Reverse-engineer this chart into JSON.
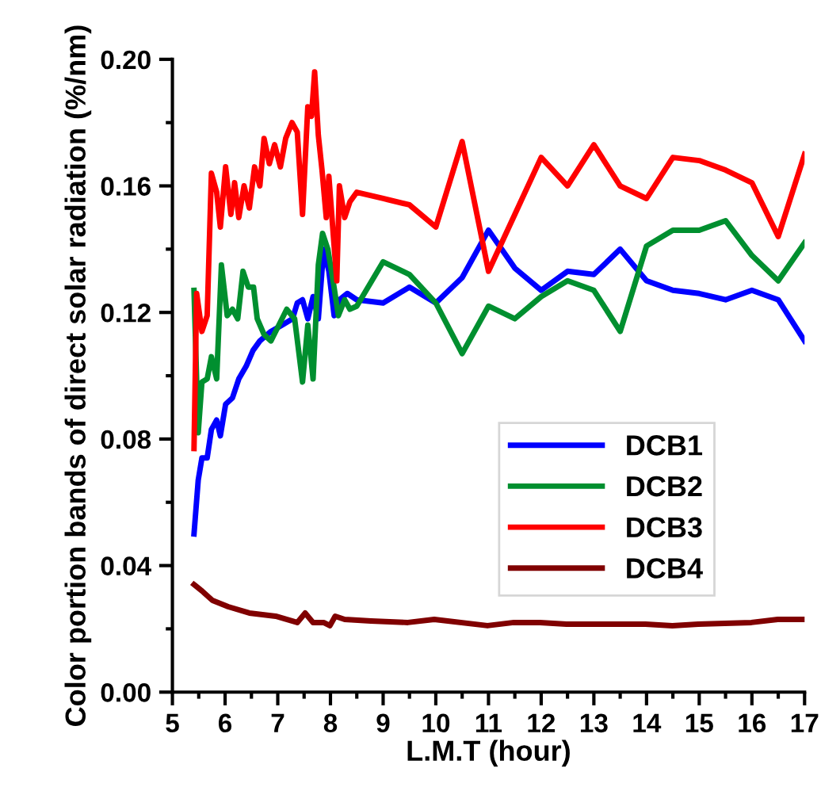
{
  "chart_data": {
    "type": "line",
    "xlabel": "L.M.T (hour)",
    "ylabel": "Color portion bands of direct solar radiation (%/nm)",
    "xlim": [
      5,
      17
    ],
    "ylim": [
      0,
      0.2
    ],
    "xticks": [
      5,
      6,
      7,
      8,
      9,
      10,
      11,
      12,
      13,
      14,
      15,
      16,
      17
    ],
    "yticks": [
      {
        "value": 0,
        "label": "0.00"
      },
      {
        "value": 0.04,
        "label": "0.04"
      },
      {
        "value": 0.08,
        "label": "0.08"
      },
      {
        "value": 0.12,
        "label": "0.12"
      },
      {
        "value": 0.16,
        "label": "0.16"
      },
      {
        "value": 0.2,
        "label": "0.20"
      }
    ],
    "grid": false,
    "legend": "bottom right",
    "marker": "none",
    "line_style": "solid",
    "series": [
      {
        "name": "DCB1",
        "color": "#0000ff",
        "x": [
          5.41,
          5.49,
          5.56,
          5.66,
          5.74,
          5.84,
          5.91,
          6.01,
          6.14,
          6.26,
          6.4,
          6.53,
          6.66,
          6.87,
          7.08,
          7.28,
          7.37,
          7.47,
          7.57,
          7.67,
          7.77,
          7.87,
          7.97,
          8.07,
          8.17,
          8.32,
          8.5,
          9,
          9.5,
          10,
          10.5,
          11,
          11.5,
          12,
          12.5,
          13,
          13.5,
          14,
          14.5,
          15,
          15.5,
          16,
          16.5,
          17
        ],
        "values": [
          0.05,
          0.067,
          0.074,
          0.074,
          0.083,
          0.086,
          0.081,
          0.091,
          0.093,
          0.099,
          0.103,
          0.108,
          0.111,
          0.114,
          0.116,
          0.118,
          0.123,
          0.124,
          0.118,
          0.125,
          0.118,
          0.14,
          0.133,
          0.119,
          0.124,
          0.126,
          0.124,
          0.123,
          0.128,
          0.123,
          0.131,
          0.146,
          0.134,
          0.127,
          0.133,
          0.132,
          0.14,
          0.13,
          0.127,
          0.126,
          0.124,
          0.127,
          0.124,
          0.111
        ]
      },
      {
        "name": "DCB2",
        "color": "#008f2f",
        "x": [
          5.41,
          5.49,
          5.56,
          5.66,
          5.74,
          5.84,
          5.93,
          6.04,
          6.14,
          6.24,
          6.34,
          6.44,
          6.54,
          6.61,
          6.74,
          6.87,
          7.02,
          7.17,
          7.32,
          7.47,
          7.57,
          7.67,
          7.77,
          7.85,
          7.95,
          8.05,
          8.15,
          8.27,
          8.37,
          8.5,
          9,
          9.5,
          10,
          10.5,
          11,
          11.5,
          12,
          12.5,
          13,
          13.5,
          14,
          14.5,
          15,
          15.5,
          16,
          16.5,
          17
        ],
        "values": [
          0.127,
          0.082,
          0.098,
          0.099,
          0.106,
          0.099,
          0.135,
          0.119,
          0.121,
          0.118,
          0.133,
          0.128,
          0.128,
          0.118,
          0.113,
          0.111,
          0.116,
          0.121,
          0.118,
          0.098,
          0.116,
          0.099,
          0.135,
          0.145,
          0.14,
          0.13,
          0.119,
          0.124,
          0.121,
          0.122,
          0.136,
          0.132,
          0.123,
          0.107,
          0.122,
          0.118,
          0.125,
          0.13,
          0.127,
          0.114,
          0.141,
          0.146,
          0.146,
          0.149,
          0.138,
          0.13,
          0.142
        ]
      },
      {
        "name": "DCB3",
        "color": "#ff0000",
        "x": [
          5.41,
          5.46,
          5.56,
          5.66,
          5.74,
          5.84,
          5.91,
          6.01,
          6.11,
          6.18,
          6.26,
          6.36,
          6.46,
          6.56,
          6.66,
          6.74,
          6.84,
          6.94,
          7.05,
          7.15,
          7.27,
          7.37,
          7.47,
          7.57,
          7.64,
          7.7,
          7.77,
          7.84,
          7.92,
          7.97,
          8.07,
          8.12,
          8.17,
          8.27,
          8.37,
          8.5,
          9,
          9.5,
          10,
          10.5,
          11,
          11.5,
          12,
          12.5,
          13,
          13.5,
          14,
          14.5,
          15,
          15.5,
          16,
          16.5,
          17
        ],
        "values": [
          0.077,
          0.126,
          0.114,
          0.119,
          0.164,
          0.158,
          0.147,
          0.166,
          0.151,
          0.161,
          0.15,
          0.16,
          0.153,
          0.166,
          0.16,
          0.175,
          0.167,
          0.173,
          0.166,
          0.175,
          0.18,
          0.177,
          0.151,
          0.185,
          0.182,
          0.196,
          0.176,
          0.165,
          0.15,
          0.163,
          0.141,
          0.13,
          0.16,
          0.15,
          0.155,
          0.158,
          0.156,
          0.154,
          0.147,
          0.174,
          0.133,
          0.151,
          0.169,
          0.16,
          0.173,
          0.16,
          0.156,
          0.169,
          0.168,
          0.165,
          0.161,
          0.144,
          0.17
        ]
      },
      {
        "name": "DCB4",
        "color": "#800000",
        "x": [
          5.41,
          5.56,
          5.76,
          6.06,
          6.46,
          6.96,
          7.37,
          7.52,
          7.67,
          7.87,
          7.99,
          8.09,
          8.27,
          8.77,
          9.47,
          9.97,
          10.98,
          11.48,
          11.98,
          12.48,
          13.98,
          14.49,
          14.98,
          15.99,
          16.49,
          16.99
        ],
        "values": [
          0.034,
          0.032,
          0.029,
          0.027,
          0.025,
          0.024,
          0.022,
          0.025,
          0.022,
          0.022,
          0.021,
          0.024,
          0.023,
          0.0225,
          0.022,
          0.023,
          0.021,
          0.022,
          0.022,
          0.0215,
          0.0215,
          0.021,
          0.0215,
          0.022,
          0.023,
          0.023
        ]
      }
    ]
  }
}
